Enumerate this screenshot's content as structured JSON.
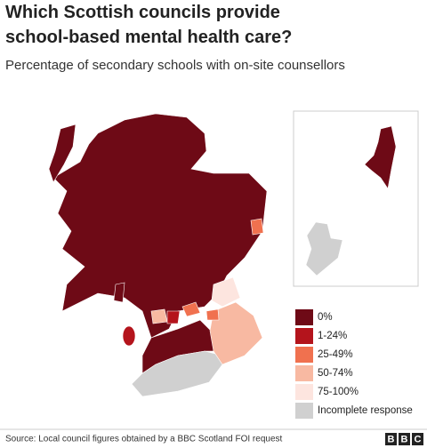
{
  "header": {
    "title": [
      "Which Scottish councils provide",
      "school-based mental health care?"
    ],
    "subtitle": "Percentage of secondary schools with on-site counsellors"
  },
  "legend": {
    "items": [
      {
        "label": "0%",
        "color": "#6e0a16"
      },
      {
        "label": "1-24%",
        "color": "#b4141c"
      },
      {
        "label": "25-49%",
        "color": "#f0714f"
      },
      {
        "label": "50-74%",
        "color": "#f8b9a2"
      },
      {
        "label": "75-100%",
        "color": "#fde5df"
      },
      {
        "label": "Incomplete response",
        "color": "#d0d0d0"
      }
    ]
  },
  "footer": {
    "source": "Source: Local council figures obtained by a BBC Scotland FOI request",
    "logo": [
      "B",
      "B",
      "C"
    ]
  }
}
